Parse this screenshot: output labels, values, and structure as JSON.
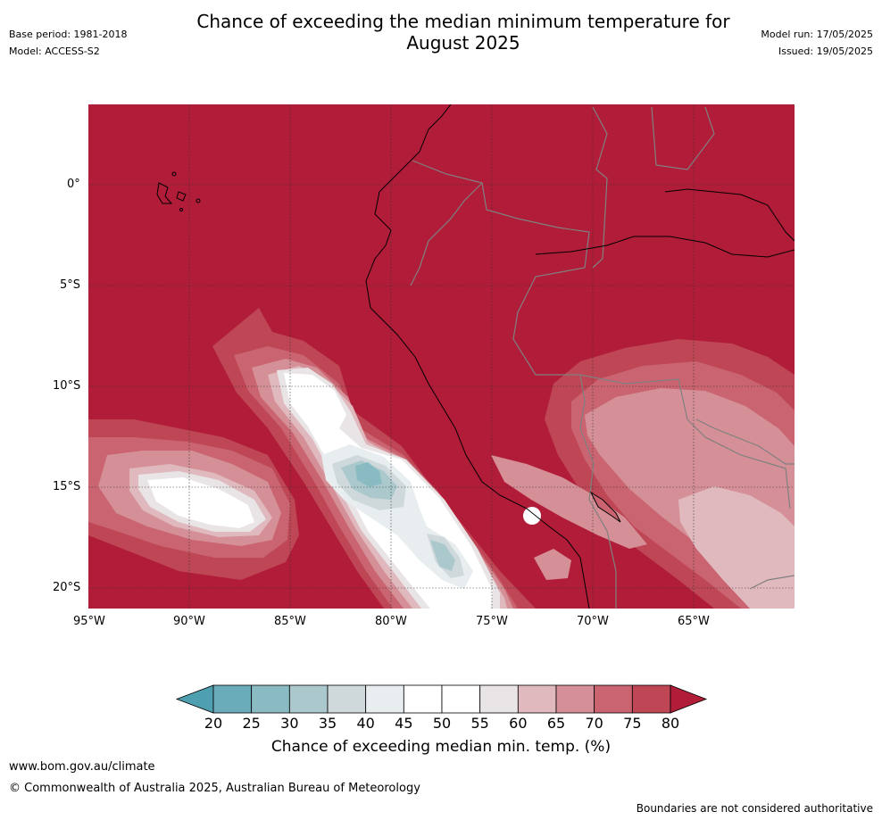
{
  "header": {
    "title_line1": "Chance of exceeding the median minimum temperature for",
    "title_line2": "August 2025",
    "base_period": "Base period: 1981-2018",
    "model": "Model: ACCESS-S2",
    "model_run": "Model run: 17/05/2025",
    "issued": "Issued: 19/05/2025"
  },
  "map": {
    "background_color": "#b11c38",
    "lon_ticks": [
      "95°W",
      "90°W",
      "85°W",
      "80°W",
      "75°W",
      "70°W",
      "65°W"
    ],
    "lat_ticks": [
      "0°",
      "5°S",
      "10°S",
      "15°S",
      "20°S"
    ],
    "extent": {
      "lon_min": -95,
      "lon_max": -60,
      "lat_min": -21,
      "lat_max": 4
    }
  },
  "colorbar": {
    "ticks": [
      "20",
      "25",
      "30",
      "35",
      "40",
      "45",
      "50",
      "55",
      "60",
      "65",
      "70",
      "75",
      "80"
    ],
    "colors": [
      "#4e9fb0",
      "#6aacb9",
      "#8bbbc2",
      "#abc9cc",
      "#cfd8da",
      "#e8eef0",
      "#ffffff",
      "#ffffff",
      "#e9e4e5",
      "#dfb9be",
      "#d58f96",
      "#c96470",
      "#be4655",
      "#b11c38"
    ],
    "label": "Chance of exceeding median min. temp. (%)"
  },
  "footer": {
    "website": "www.bom.gov.au/climate",
    "copyright": "© Commonwealth of Australia 2025, Australian Bureau of Meteorology",
    "disclaimer": "Boundaries are not considered authoritative"
  }
}
